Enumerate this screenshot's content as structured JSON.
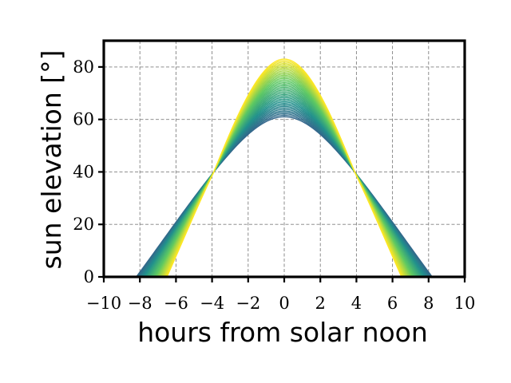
{
  "chart_data": {
    "type": "line",
    "title": "",
    "xlabel": "hours from solar noon",
    "ylabel": "sun elevation [°]",
    "xlim": [
      -10,
      10
    ],
    "ylim": [
      0,
      90
    ],
    "x_ticks": [
      -10,
      -8,
      -6,
      -4,
      -2,
      0,
      2,
      4,
      6,
      8,
      10
    ],
    "y_ticks": [
      0,
      20,
      40,
      60,
      80
    ],
    "x_tick_labels": [
      "−10",
      "−8",
      "−6",
      "−4",
      "−2",
      "0",
      "2",
      "4",
      "6",
      "8",
      "10"
    ],
    "y_tick_labels": [
      "0",
      "20",
      "40",
      "60",
      "80"
    ],
    "grid": true,
    "legend": "none",
    "colormap": "viridis",
    "colors": {
      "low": "#31688e",
      "mid": "#21918c",
      "high": "#fde725"
    },
    "series_range": {
      "count": 40,
      "peak_elevation_min": 61,
      "peak_elevation_max": 83,
      "half_day_hours_min": 6.5,
      "half_day_hours_max": 8.2,
      "crossover_hours": 3.9,
      "crossover_elevation": 40
    }
  }
}
